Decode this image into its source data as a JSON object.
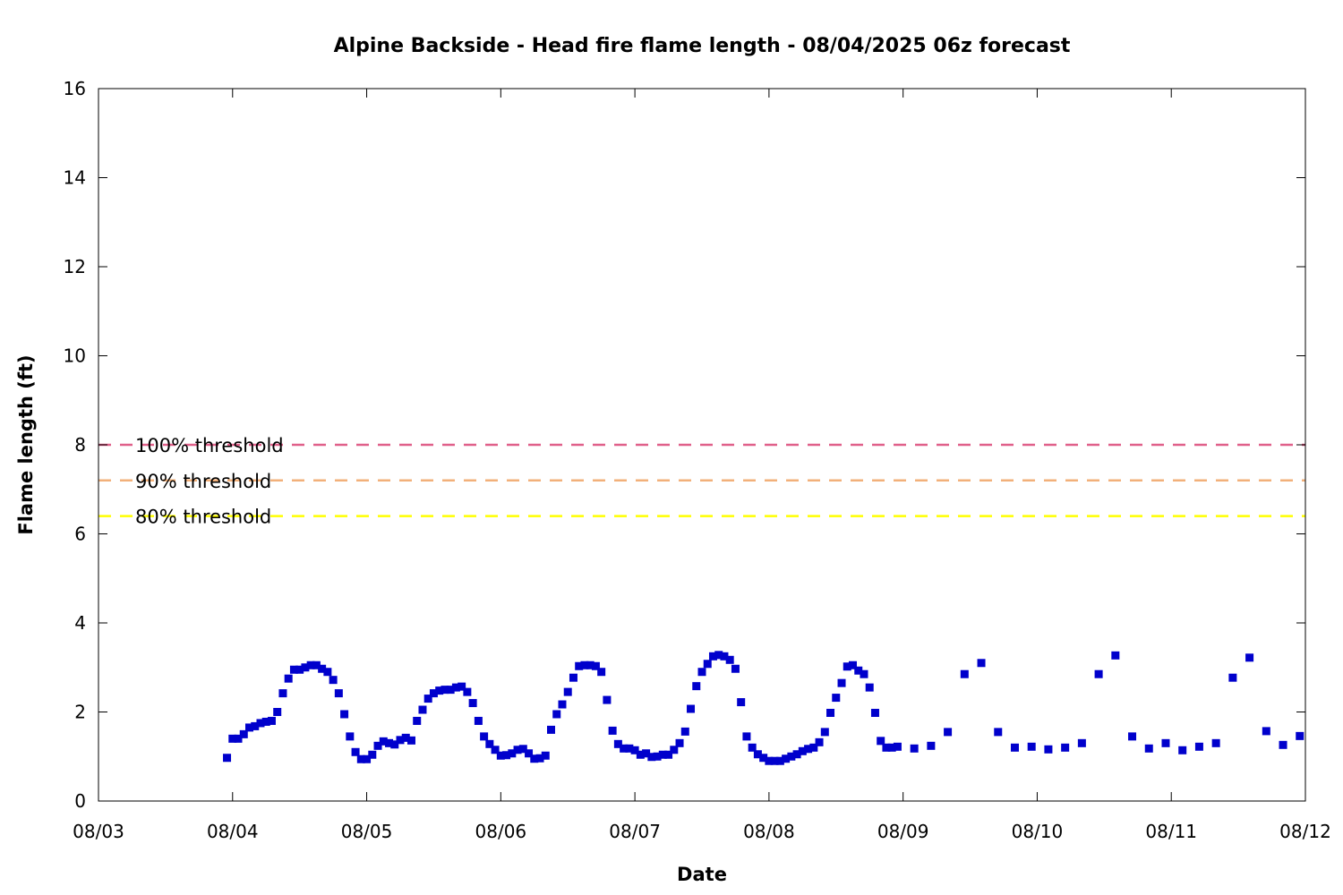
{
  "chart_data": {
    "type": "scatter",
    "title": "Alpine Backside - Head fire flame length - 08/04/2025 06z forecast",
    "xlabel": "Date",
    "ylabel": "Flame length (ft)",
    "x_axis": {
      "type": "date",
      "start": "2025-08-03",
      "end": "2025-08-12",
      "tick_labels": [
        "08/03",
        "08/04",
        "08/05",
        "08/06",
        "08/07",
        "08/08",
        "08/09",
        "08/10",
        "08/11",
        "08/12"
      ]
    },
    "ylim": [
      0,
      16
    ],
    "y_ticks": [
      0,
      2,
      4,
      6,
      8,
      10,
      12,
      14,
      16
    ],
    "grid": false,
    "legend_placement": "left",
    "thresholds": [
      {
        "name": "100% threshold",
        "value": 8.0,
        "color": "#e0608a"
      },
      {
        "name": "90% threshold",
        "value": 7.2,
        "color": "#f2b07a"
      },
      {
        "name": "80% threshold",
        "value": 6.4,
        "color": "#ffff00"
      }
    ],
    "series": [
      {
        "color": "#0000cc",
        "marker": "square",
        "points": [
          [
            "08/03 23:00",
            0.97
          ],
          [
            "08/04 00:00",
            1.4
          ],
          [
            "08/04 01:00",
            1.4
          ],
          [
            "08/04 02:00",
            1.5
          ],
          [
            "08/04 03:00",
            1.65
          ],
          [
            "08/04 04:00",
            1.68
          ],
          [
            "08/04 05:00",
            1.75
          ],
          [
            "08/04 06:00",
            1.78
          ],
          [
            "08/04 07:00",
            1.8
          ],
          [
            "08/04 08:00",
            2.0
          ],
          [
            "08/04 09:00",
            2.42
          ],
          [
            "08/04 10:00",
            2.75
          ],
          [
            "08/04 11:00",
            2.95
          ],
          [
            "08/04 12:00",
            2.95
          ],
          [
            "08/04 13:00",
            3.0
          ],
          [
            "08/04 14:00",
            3.05
          ],
          [
            "08/04 15:00",
            3.05
          ],
          [
            "08/04 16:00",
            2.97
          ],
          [
            "08/04 17:00",
            2.9
          ],
          [
            "08/04 18:00",
            2.72
          ],
          [
            "08/04 19:00",
            2.42
          ],
          [
            "08/04 20:00",
            1.95
          ],
          [
            "08/04 21:00",
            1.45
          ],
          [
            "08/04 22:00",
            1.1
          ],
          [
            "08/04 23:00",
            0.94
          ],
          [
            "08/05 00:00",
            0.94
          ],
          [
            "08/05 01:00",
            1.04
          ],
          [
            "08/05 02:00",
            1.24
          ],
          [
            "08/05 03:00",
            1.34
          ],
          [
            "08/05 04:00",
            1.3
          ],
          [
            "08/05 05:00",
            1.27
          ],
          [
            "08/05 06:00",
            1.37
          ],
          [
            "08/05 07:00",
            1.42
          ],
          [
            "08/05 08:00",
            1.36
          ],
          [
            "08/05 09:00",
            1.8
          ],
          [
            "08/05 10:00",
            2.05
          ],
          [
            "08/05 11:00",
            2.3
          ],
          [
            "08/05 12:00",
            2.42
          ],
          [
            "08/05 13:00",
            2.48
          ],
          [
            "08/05 14:00",
            2.5
          ],
          [
            "08/05 15:00",
            2.5
          ],
          [
            "08/05 16:00",
            2.55
          ],
          [
            "08/05 17:00",
            2.57
          ],
          [
            "08/05 18:00",
            2.45
          ],
          [
            "08/05 19:00",
            2.2
          ],
          [
            "08/05 20:00",
            1.8
          ],
          [
            "08/05 21:00",
            1.45
          ],
          [
            "08/05 22:00",
            1.28
          ],
          [
            "08/05 23:00",
            1.15
          ],
          [
            "08/06 00:00",
            1.02
          ],
          [
            "08/06 01:00",
            1.03
          ],
          [
            "08/06 02:00",
            1.07
          ],
          [
            "08/06 03:00",
            1.15
          ],
          [
            "08/06 04:00",
            1.17
          ],
          [
            "08/06 05:00",
            1.07
          ],
          [
            "08/06 06:00",
            0.95
          ],
          [
            "08/06 07:00",
            0.96
          ],
          [
            "08/06 08:00",
            1.02
          ],
          [
            "08/06 09:00",
            1.6
          ],
          [
            "08/06 10:00",
            1.95
          ],
          [
            "08/06 11:00",
            2.17
          ],
          [
            "08/06 12:00",
            2.45
          ],
          [
            "08/06 13:00",
            2.77
          ],
          [
            "08/06 14:00",
            3.03
          ],
          [
            "08/06 15:00",
            3.05
          ],
          [
            "08/06 16:00",
            3.05
          ],
          [
            "08/06 17:00",
            3.03
          ],
          [
            "08/06 18:00",
            2.9
          ],
          [
            "08/06 19:00",
            2.27
          ],
          [
            "08/06 20:00",
            1.58
          ],
          [
            "08/06 21:00",
            1.28
          ],
          [
            "08/06 22:00",
            1.18
          ],
          [
            "08/06 23:00",
            1.18
          ],
          [
            "08/07 00:00",
            1.14
          ],
          [
            "08/07 01:00",
            1.04
          ],
          [
            "08/07 02:00",
            1.07
          ],
          [
            "08/07 03:00",
            0.99
          ],
          [
            "08/07 04:00",
            1.0
          ],
          [
            "08/07 05:00",
            1.04
          ],
          [
            "08/07 06:00",
            1.04
          ],
          [
            "08/07 07:00",
            1.15
          ],
          [
            "08/07 08:00",
            1.3
          ],
          [
            "08/07 09:00",
            1.56
          ],
          [
            "08/07 10:00",
            2.07
          ],
          [
            "08/07 11:00",
            2.58
          ],
          [
            "08/07 12:00",
            2.9
          ],
          [
            "08/07 13:00",
            3.08
          ],
          [
            "08/07 14:00",
            3.25
          ],
          [
            "08/07 15:00",
            3.28
          ],
          [
            "08/07 16:00",
            3.25
          ],
          [
            "08/07 17:00",
            3.17
          ],
          [
            "08/07 18:00",
            2.97
          ],
          [
            "08/07 19:00",
            2.22
          ],
          [
            "08/07 20:00",
            1.45
          ],
          [
            "08/07 21:00",
            1.2
          ],
          [
            "08/07 22:00",
            1.05
          ],
          [
            "08/07 23:00",
            0.97
          ],
          [
            "08/08 00:00",
            0.9
          ],
          [
            "08/08 01:00",
            0.9
          ],
          [
            "08/08 02:00",
            0.9
          ],
          [
            "08/08 03:00",
            0.95
          ],
          [
            "08/08 04:00",
            1.0
          ],
          [
            "08/08 05:00",
            1.05
          ],
          [
            "08/08 06:00",
            1.12
          ],
          [
            "08/08 07:00",
            1.17
          ],
          [
            "08/08 08:00",
            1.2
          ],
          [
            "08/08 09:00",
            1.32
          ],
          [
            "08/08 10:00",
            1.55
          ],
          [
            "08/08 11:00",
            1.98
          ],
          [
            "08/08 12:00",
            2.32
          ],
          [
            "08/08 13:00",
            2.65
          ],
          [
            "08/08 14:00",
            3.02
          ],
          [
            "08/08 15:00",
            3.05
          ],
          [
            "08/08 16:00",
            2.93
          ],
          [
            "08/08 17:00",
            2.85
          ],
          [
            "08/08 18:00",
            2.55
          ],
          [
            "08/08 19:00",
            1.98
          ],
          [
            "08/08 20:00",
            1.35
          ],
          [
            "08/08 21:00",
            1.2
          ],
          [
            "08/08 22:00",
            1.2
          ],
          [
            "08/08 23:00",
            1.22
          ],
          [
            "08/09 02:00",
            1.18
          ],
          [
            "08/09 05:00",
            1.24
          ],
          [
            "08/09 08:00",
            1.55
          ],
          [
            "08/09 11:00",
            2.85
          ],
          [
            "08/09 14:00",
            3.1
          ],
          [
            "08/09 17:00",
            1.55
          ],
          [
            "08/09 20:00",
            1.2
          ],
          [
            "08/09 23:00",
            1.22
          ],
          [
            "08/10 02:00",
            1.16
          ],
          [
            "08/10 05:00",
            1.2
          ],
          [
            "08/10 08:00",
            1.3
          ],
          [
            "08/10 11:00",
            2.85
          ],
          [
            "08/10 14:00",
            3.27
          ],
          [
            "08/10 17:00",
            1.45
          ],
          [
            "08/10 20:00",
            1.18
          ],
          [
            "08/10 23:00",
            1.3
          ],
          [
            "08/11 02:00",
            1.14
          ],
          [
            "08/11 05:00",
            1.22
          ],
          [
            "08/11 08:00",
            1.3
          ],
          [
            "08/11 11:00",
            2.77
          ],
          [
            "08/11 14:00",
            3.22
          ],
          [
            "08/11 17:00",
            1.57
          ],
          [
            "08/11 20:00",
            1.26
          ],
          [
            "08/11 23:00",
            1.46
          ]
        ]
      }
    ]
  }
}
